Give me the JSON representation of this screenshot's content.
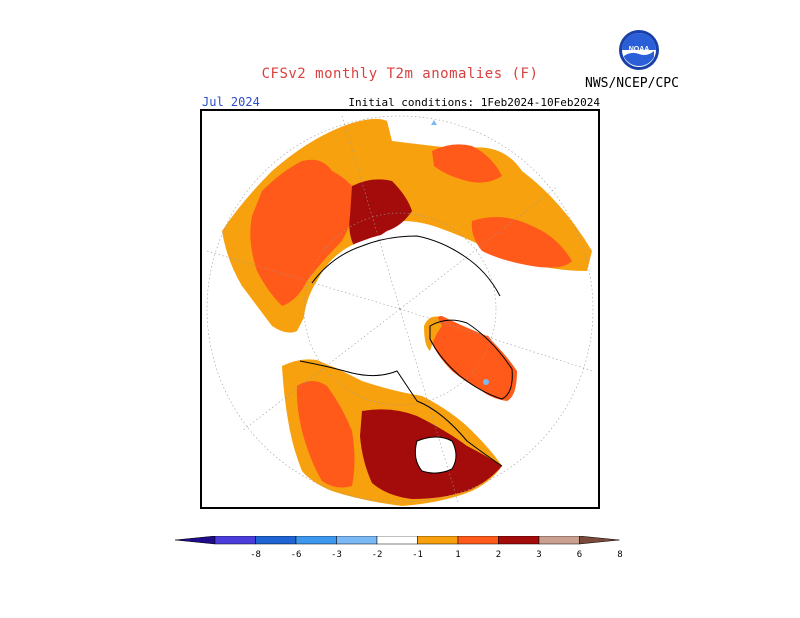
{
  "header": {
    "title": "CFSv2 monthly T2m anomalies (F)",
    "month": "Jul 2024",
    "initial_conditions": "Initial conditions: 1Feb2024-10Feb2024",
    "agency": "NWS/NCEP/CPC",
    "logo_text": "NOAA"
  },
  "colors": {
    "title": "#d94040",
    "month": "#2a4fd1",
    "text": "#000000",
    "anom_1": "#f7a10f",
    "anom_2": "#ff5a1a",
    "anom_3": "#e8340d",
    "anom_4": "#a40b0b",
    "anom_6": "#c9a090",
    "cold_1": "#7ab9f5"
  },
  "colorbar": {
    "labels": [
      "-8",
      "-6",
      "-3",
      "-2",
      "-1",
      "1",
      "2",
      "3",
      "6",
      "8"
    ],
    "colors": [
      "#1e0c8c",
      "#4b3ddc",
      "#1f64d2",
      "#3e97ee",
      "#7ab9f5",
      "#ffffff",
      "#f7a10f",
      "#ff5a1a",
      "#a40b0b",
      "#c9a090",
      "#7a4a3a"
    ]
  }
}
